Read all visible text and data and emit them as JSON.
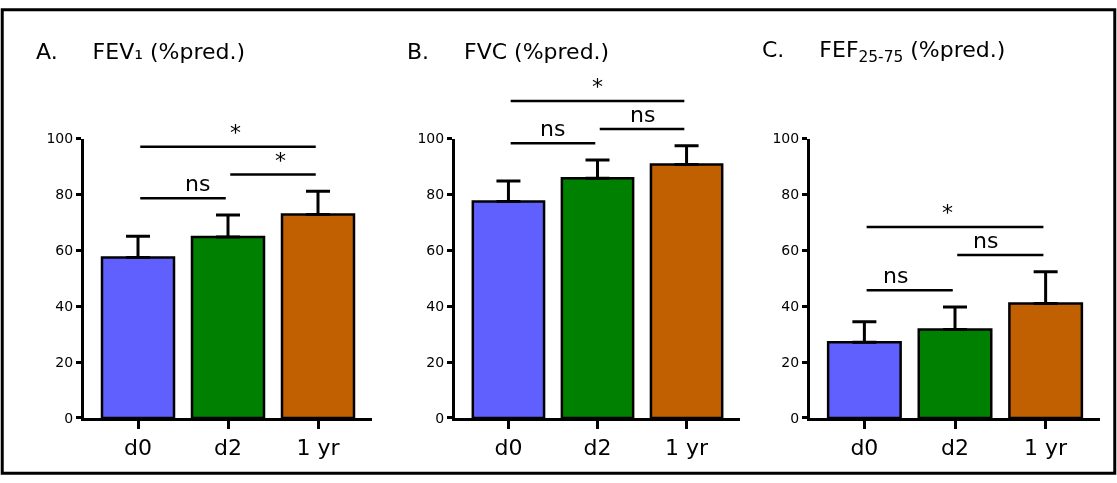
{
  "chart_data": [
    {
      "type": "bar",
      "title": "A.     FEV₁ (%pred.)",
      "categories": [
        "d0",
        "d2",
        "1 yr"
      ],
      "values": [
        57.4,
        64.8,
        72.8
      ],
      "colors": [
        "#6060ff",
        "#008000",
        "#c06000"
      ],
      "errors": [
        [
          57.4,
          65
        ],
        [
          64.8,
          72.6
        ],
        [
          72.8,
          81.1
        ]
      ],
      "ylim": [
        0,
        100
      ],
      "yticks": [
        0,
        20,
        40,
        60,
        80,
        100
      ],
      "annotations": [
        "ns",
        "*",
        "*"
      ]
    },
    {
      "type": "bar",
      "title": "B.     FVC (%pred.)",
      "categories": [
        "d0",
        "d2",
        "1 yr"
      ],
      "values": [
        77.5,
        85.8,
        90.7
      ],
      "colors": [
        "#6060ff",
        "#008000",
        "#c06000"
      ],
      "errors": [
        [
          77.5,
          84.8
        ],
        [
          85.8,
          92.3
        ],
        [
          90.7,
          97.4
        ]
      ],
      "ylim": [
        0,
        100
      ],
      "yticks": [
        0,
        20,
        40,
        60,
        80,
        100
      ],
      "annotations": [
        "ns",
        "ns",
        "*"
      ]
    },
    {
      "type": "bar",
      "title": "C.     FEF$_{25-75}$ (%pred.)",
      "categories": [
        "d0",
        "d2",
        "1 yr"
      ],
      "values": [
        27.1,
        31.7,
        41.0
      ],
      "colors": [
        "#6060ff",
        "#008000",
        "#c06000"
      ],
      "errors": [
        [
          27.1,
          34.4
        ],
        [
          31.7,
          39.7
        ],
        [
          41.0,
          52.3
        ]
      ],
      "ylim": [
        0,
        100
      ],
      "yticks": [
        0,
        20,
        40,
        60,
        80,
        100
      ],
      "annotations": [
        "ns",
        "ns",
        "*"
      ]
    }
  ]
}
